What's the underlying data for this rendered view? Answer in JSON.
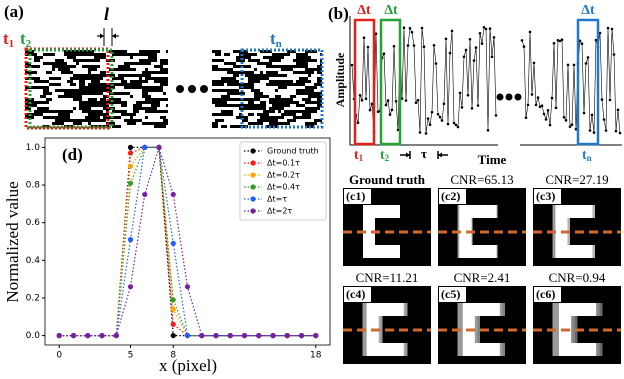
{
  "panels": {
    "a": {
      "label": "(a)",
      "l": "l",
      "t1": {
        "t": "t",
        "sub": "1"
      },
      "t2": {
        "t": "t",
        "sub": "2"
      },
      "tn": {
        "t": "t",
        "sub": "n"
      }
    },
    "b": {
      "label": "(b)",
      "delta_t_labels": [
        "Δt",
        "Δt",
        "Δt"
      ],
      "y_label": "Amplitude",
      "x_label": "Time",
      "t1": {
        "t": "t",
        "sub": "1"
      },
      "t2": {
        "t": "t",
        "sub": "2"
      },
      "tau": "τ",
      "tn": {
        "t": "t",
        "sub": "n"
      }
    },
    "c": {
      "images": [
        {
          "label": "(c1)",
          "title": "Ground truth"
        },
        {
          "label": "(c2)",
          "title": "CNR=65.13"
        },
        {
          "label": "(c3)",
          "title": "CNR=27.19"
        },
        {
          "label": "(c4)",
          "title": "CNR=11.21"
        },
        {
          "label": "(c5)",
          "title": "CNR=2.41"
        },
        {
          "label": "(c6)",
          "title": "CNR=0.94"
        }
      ]
    }
  },
  "chart_data": {
    "type": "line",
    "panel_label": "(d)",
    "x_label": "x (pixel)",
    "y_label": "Normalized value",
    "x": [
      0,
      1,
      2,
      3,
      4,
      5,
      6,
      7,
      8,
      9,
      10,
      11,
      12,
      13,
      14,
      15,
      16,
      17,
      18
    ],
    "series": [
      {
        "name": "Ground truth",
        "color": "#000000",
        "values": [
          0,
          0,
          0,
          0,
          0,
          1,
          1,
          1,
          0,
          0,
          0,
          0,
          0,
          0,
          0,
          0,
          0,
          0,
          0
        ]
      },
      {
        "name": "Δt=0.1τ",
        "color": "#ff1a1a",
        "values": [
          0,
          0,
          0,
          0,
          0,
          0.97,
          1,
          1,
          0.06,
          0,
          0,
          0,
          0,
          0,
          0,
          0,
          0,
          0,
          0
        ]
      },
      {
        "name": "Δt=0.2τ",
        "color": "#ffa500",
        "values": [
          0,
          0,
          0,
          0,
          0,
          0.9,
          1,
          1,
          0.14,
          0,
          0,
          0,
          0,
          0,
          0,
          0,
          0,
          0,
          0
        ]
      },
      {
        "name": "Δt=0.4τ",
        "color": "#2ca02c",
        "values": [
          0,
          0,
          0,
          0,
          0,
          0.81,
          1,
          1,
          0.19,
          0,
          0,
          0,
          0,
          0,
          0,
          0,
          0,
          0,
          0
        ]
      },
      {
        "name": "Δt=τ",
        "color": "#1f5fff",
        "values": [
          0,
          0,
          0,
          0,
          0,
          0.51,
          1,
          1,
          0.49,
          0,
          0,
          0,
          0,
          0,
          0,
          0,
          0,
          0,
          0
        ]
      },
      {
        "name": "Δt=2τ",
        "color": "#7b1fa2",
        "values": [
          0,
          0,
          0,
          0,
          0,
          0.26,
          0.75,
          1,
          0.75,
          0.26,
          0,
          0,
          0,
          0,
          0,
          0,
          0,
          0,
          0
        ]
      }
    ],
    "xlim": [
      -1,
      19
    ],
    "xticks": [
      0,
      5,
      8,
      18
    ],
    "ylim": [
      -0.05,
      1.05
    ],
    "yticks": [
      {
        "value": 0,
        "label": "0.0"
      },
      0.2,
      0.4,
      0.6,
      0.8,
      {
        "value": 1,
        "label": "1.0"
      }
    ],
    "grid": false,
    "legend": "upper right"
  }
}
